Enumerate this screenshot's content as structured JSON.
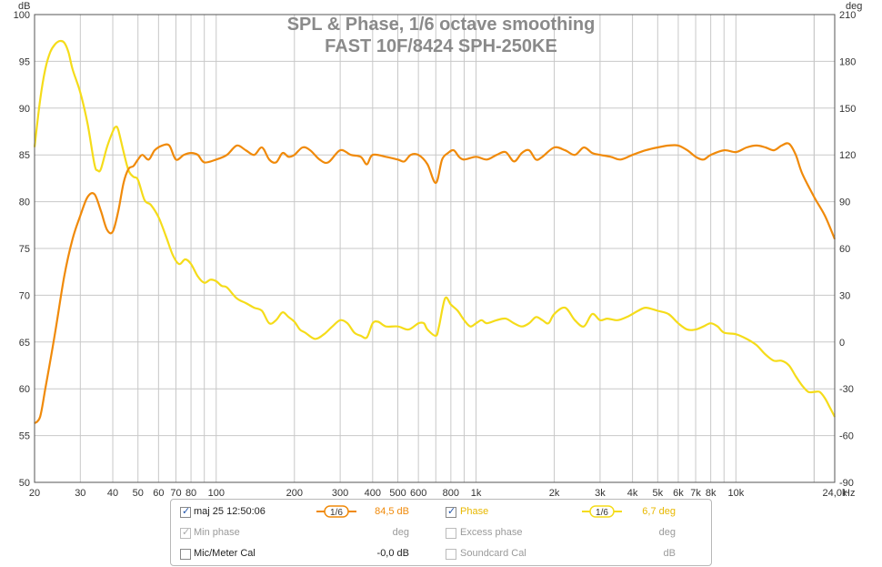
{
  "header": {
    "title_line1": "SPL & Phase, 1/6 octave smoothing",
    "title_line2": "FAST 10F/8424 SPH-250KE"
  },
  "colors": {
    "spl": "#f08a0a",
    "phase": "#f5dc1a",
    "grid": "#c8c8c8",
    "axis": "#555555"
  },
  "axes": {
    "left_unit": "dB",
    "right_unit": "deg",
    "x_unit": "Hz",
    "x_ticks": [
      "20",
      "30",
      "40",
      "50",
      "60",
      "70",
      "80",
      "100",
      "200",
      "300",
      "400",
      "500",
      "600",
      "800",
      "1k",
      "2k",
      "3k",
      "4k",
      "5k",
      "6k",
      "7k",
      "8k",
      "10k",
      "24,0k"
    ],
    "left_ticks": [
      "100",
      "95",
      "90",
      "85",
      "80",
      "75",
      "70",
      "65",
      "60",
      "55",
      "50"
    ],
    "right_ticks": [
      "210",
      "180",
      "150",
      "120",
      "90",
      "60",
      "30",
      "0",
      "-30",
      "-60",
      "-90"
    ]
  },
  "chart_data": {
    "type": "line",
    "x_scale": "log",
    "xlim": [
      20,
      24000
    ],
    "y_left_lim": [
      50,
      100
    ],
    "y_right_lim": [
      -90,
      210
    ],
    "series": [
      {
        "name": "maj 25 12:50:06",
        "axis": "left",
        "unit": "dB",
        "points": [
          [
            20,
            56.3
          ],
          [
            21,
            57
          ],
          [
            22,
            60
          ],
          [
            24,
            66
          ],
          [
            26,
            72
          ],
          [
            28,
            76
          ],
          [
            30,
            78.5
          ],
          [
            32,
            80.5
          ],
          [
            34,
            80.8
          ],
          [
            36,
            79
          ],
          [
            38,
            77
          ],
          [
            40,
            76.8
          ],
          [
            42,
            79
          ],
          [
            44,
            82
          ],
          [
            46,
            83.5
          ],
          [
            48,
            83.8
          ],
          [
            50,
            84.5
          ],
          [
            52,
            85
          ],
          [
            55,
            84.5
          ],
          [
            58,
            85.5
          ],
          [
            62,
            86
          ],
          [
            66,
            86
          ],
          [
            70,
            84.5
          ],
          [
            75,
            85
          ],
          [
            80,
            85.2
          ],
          [
            85,
            85
          ],
          [
            90,
            84.2
          ],
          [
            100,
            84.5
          ],
          [
            110,
            85
          ],
          [
            120,
            86
          ],
          [
            130,
            85.5
          ],
          [
            140,
            85
          ],
          [
            150,
            85.8
          ],
          [
            160,
            84.5
          ],
          [
            170,
            84.2
          ],
          [
            180,
            85.2
          ],
          [
            190,
            84.8
          ],
          [
            200,
            85
          ],
          [
            215,
            85.8
          ],
          [
            230,
            85.5
          ],
          [
            250,
            84.5
          ],
          [
            270,
            84.2
          ],
          [
            300,
            85.5
          ],
          [
            330,
            85
          ],
          [
            360,
            84.8
          ],
          [
            380,
            84
          ],
          [
            400,
            85
          ],
          [
            450,
            84.8
          ],
          [
            500,
            84.5
          ],
          [
            530,
            84.3
          ],
          [
            560,
            85
          ],
          [
            600,
            85
          ],
          [
            650,
            84
          ],
          [
            700,
            82
          ],
          [
            740,
            84.5
          ],
          [
            780,
            85.2
          ],
          [
            820,
            85.5
          ],
          [
            860,
            84.8
          ],
          [
            900,
            84.5
          ],
          [
            1000,
            84.8
          ],
          [
            1100,
            84.5
          ],
          [
            1200,
            85
          ],
          [
            1300,
            85.3
          ],
          [
            1400,
            84.3
          ],
          [
            1500,
            85.2
          ],
          [
            1600,
            85.5
          ],
          [
            1700,
            84.5
          ],
          [
            1800,
            84.8
          ],
          [
            2000,
            85.8
          ],
          [
            2200,
            85.5
          ],
          [
            2400,
            85
          ],
          [
            2600,
            85.8
          ],
          [
            2800,
            85.2
          ],
          [
            3000,
            85
          ],
          [
            3300,
            84.8
          ],
          [
            3600,
            84.5
          ],
          [
            4000,
            85
          ],
          [
            4500,
            85.5
          ],
          [
            5000,
            85.8
          ],
          [
            5500,
            86
          ],
          [
            6000,
            86
          ],
          [
            6500,
            85.5
          ],
          [
            7000,
            84.8
          ],
          [
            7500,
            84.5
          ],
          [
            8000,
            85
          ],
          [
            9000,
            85.5
          ],
          [
            10000,
            85.3
          ],
          [
            11000,
            85.8
          ],
          [
            12000,
            86
          ],
          [
            13000,
            85.8
          ],
          [
            14000,
            85.5
          ],
          [
            15000,
            86
          ],
          [
            16000,
            86.2
          ],
          [
            17000,
            85
          ],
          [
            18000,
            83
          ],
          [
            20000,
            80.5
          ],
          [
            22000,
            78.5
          ],
          [
            24000,
            76
          ]
        ]
      },
      {
        "name": "Phase",
        "axis": "right",
        "unit": "deg",
        "points": [
          [
            20,
            125
          ],
          [
            21,
            155
          ],
          [
            22,
            175
          ],
          [
            23,
            186
          ],
          [
            24,
            191
          ],
          [
            25,
            193
          ],
          [
            26,
            192
          ],
          [
            27,
            186
          ],
          [
            28,
            175
          ],
          [
            30,
            160
          ],
          [
            32,
            140
          ],
          [
            34,
            114
          ],
          [
            35,
            110
          ],
          [
            36,
            111
          ],
          [
            38,
            125
          ],
          [
            40,
            135
          ],
          [
            41,
            138
          ],
          [
            42,
            136
          ],
          [
            44,
            122
          ],
          [
            46,
            110
          ],
          [
            48,
            106
          ],
          [
            50,
            104
          ],
          [
            53,
            91
          ],
          [
            56,
            88
          ],
          [
            60,
            80
          ],
          [
            64,
            68
          ],
          [
            68,
            56
          ],
          [
            72,
            50
          ],
          [
            76,
            53
          ],
          [
            80,
            50
          ],
          [
            85,
            42
          ],
          [
            90,
            38
          ],
          [
            95,
            40
          ],
          [
            100,
            39
          ],
          [
            105,
            36
          ],
          [
            110,
            35
          ],
          [
            120,
            28
          ],
          [
            130,
            25
          ],
          [
            140,
            22
          ],
          [
            150,
            20
          ],
          [
            160,
            12
          ],
          [
            170,
            14
          ],
          [
            180,
            19
          ],
          [
            190,
            16
          ],
          [
            200,
            13
          ],
          [
            210,
            8
          ],
          [
            220,
            6
          ],
          [
            240,
            2
          ],
          [
            260,
            5
          ],
          [
            280,
            10
          ],
          [
            300,
            14
          ],
          [
            320,
            12
          ],
          [
            340,
            6
          ],
          [
            360,
            4
          ],
          [
            380,
            3
          ],
          [
            400,
            12
          ],
          [
            420,
            13
          ],
          [
            450,
            10
          ],
          [
            500,
            10
          ],
          [
            550,
            8
          ],
          [
            600,
            12
          ],
          [
            630,
            12
          ],
          [
            650,
            8
          ],
          [
            700,
            4
          ],
          [
            720,
            10
          ],
          [
            760,
            28
          ],
          [
            800,
            24
          ],
          [
            850,
            20
          ],
          [
            900,
            14
          ],
          [
            950,
            10
          ],
          [
            1000,
            12
          ],
          [
            1050,
            14
          ],
          [
            1100,
            12
          ],
          [
            1200,
            14
          ],
          [
            1300,
            15
          ],
          [
            1400,
            12
          ],
          [
            1500,
            10
          ],
          [
            1600,
            12
          ],
          [
            1700,
            16
          ],
          [
            1800,
            14
          ],
          [
            1900,
            12
          ],
          [
            2000,
            18
          ],
          [
            2200,
            22
          ],
          [
            2400,
            14
          ],
          [
            2600,
            10
          ],
          [
            2800,
            18
          ],
          [
            3000,
            14
          ],
          [
            3200,
            15
          ],
          [
            3500,
            14
          ],
          [
            3800,
            16
          ],
          [
            4000,
            18
          ],
          [
            4200,
            20
          ],
          [
            4500,
            22
          ],
          [
            5000,
            20
          ],
          [
            5500,
            18
          ],
          [
            6000,
            12
          ],
          [
            6500,
            8
          ],
          [
            7000,
            8
          ],
          [
            7500,
            10
          ],
          [
            8000,
            12
          ],
          [
            8500,
            10
          ],
          [
            9000,
            6
          ],
          [
            10000,
            5
          ],
          [
            11000,
            2
          ],
          [
            12000,
            -2
          ],
          [
            13000,
            -8
          ],
          [
            14000,
            -12
          ],
          [
            15000,
            -12
          ],
          [
            16000,
            -15
          ],
          [
            17000,
            -22
          ],
          [
            18000,
            -28
          ],
          [
            19000,
            -32
          ],
          [
            20000,
            -32
          ],
          [
            21000,
            -32
          ],
          [
            22000,
            -36
          ],
          [
            23000,
            -42
          ],
          [
            24000,
            -48
          ]
        ]
      }
    ]
  },
  "legend": {
    "row1": {
      "label": "maj 25 12:50:06",
      "smooth": "1/6",
      "value": "84,5 dB"
    },
    "row1b": {
      "label": "Phase",
      "smooth": "1/6",
      "value": "6,7 deg"
    },
    "row2": {
      "label": "Min phase",
      "value": "deg"
    },
    "row2b": {
      "label": "Excess phase",
      "value": "deg"
    },
    "row3": {
      "label": "Mic/Meter Cal",
      "value": "-0,0 dB"
    },
    "row3b": {
      "label": "Soundcard Cal",
      "value": "dB"
    }
  }
}
